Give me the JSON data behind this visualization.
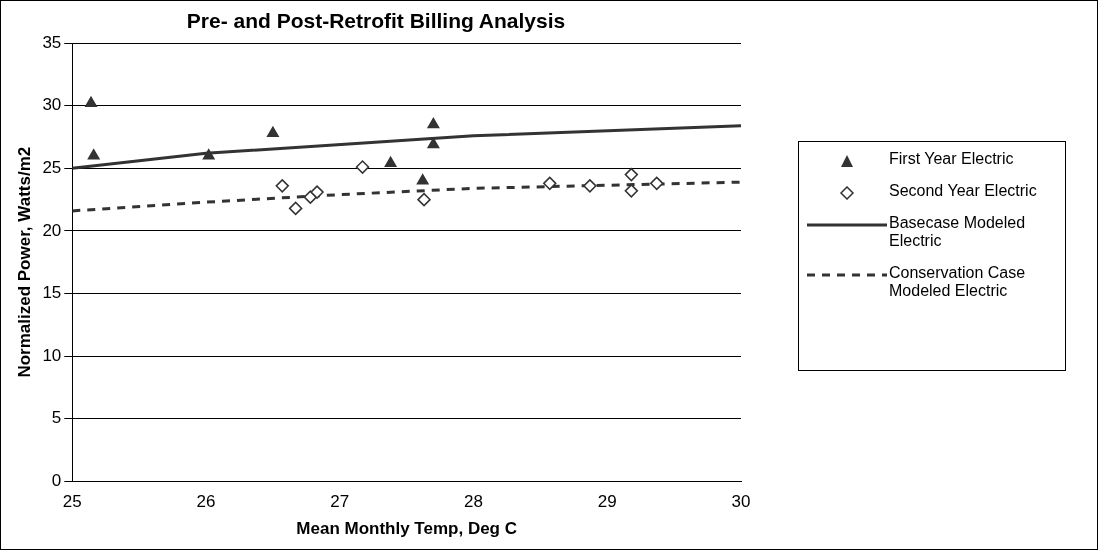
{
  "chart_data": {
    "type": "scatter",
    "title": "Pre- and Post-Retrofit Billing Analysis",
    "xlabel": "Mean Monthly Temp, Deg C",
    "ylabel": "Normalized Power, Watts/m2",
    "xlim": [
      25,
      30
    ],
    "xticks": [
      25,
      26,
      27,
      28,
      29,
      30
    ],
    "ylim": [
      0,
      35
    ],
    "yticks": [
      0,
      5,
      10,
      15,
      20,
      25,
      30,
      35
    ],
    "grid": "y",
    "legend": "right",
    "series": [
      {
        "name": "First Year Electric",
        "type": "scatter",
        "marker": "triangle",
        "color": "#333333",
        "x": [
          25.14,
          25.16,
          26.02,
          26.5,
          27.38,
          27.62,
          27.7,
          27.7
        ],
        "values": [
          30.2,
          26.0,
          26.0,
          27.8,
          25.4,
          24.0,
          28.5,
          26.9
        ]
      },
      {
        "name": "Second Year Electric",
        "type": "scatter",
        "marker": "diamond",
        "color": "#333333",
        "x": [
          26.57,
          26.67,
          26.78,
          26.83,
          27.17,
          27.63,
          28.57,
          28.87,
          29.18,
          29.18,
          29.37
        ],
        "values": [
          23.6,
          21.8,
          22.7,
          23.1,
          25.1,
          22.5,
          23.8,
          23.6,
          24.5,
          23.2,
          23.8
        ]
      },
      {
        "name": "Basecase Modeled Electric",
        "type": "line",
        "marker": "none",
        "line_style": "solid",
        "color": "#333333",
        "x": [
          25,
          26,
          28,
          30
        ],
        "values": [
          25.0,
          26.2,
          27.6,
          28.4
        ]
      },
      {
        "name": "Conservation Case Modeled Electric",
        "type": "line",
        "marker": "none",
        "line_style": "dashed",
        "color": "#333333",
        "x": [
          25,
          26,
          27,
          28,
          30
        ],
        "values": [
          21.6,
          22.3,
          22.9,
          23.4,
          23.9
        ]
      }
    ]
  }
}
